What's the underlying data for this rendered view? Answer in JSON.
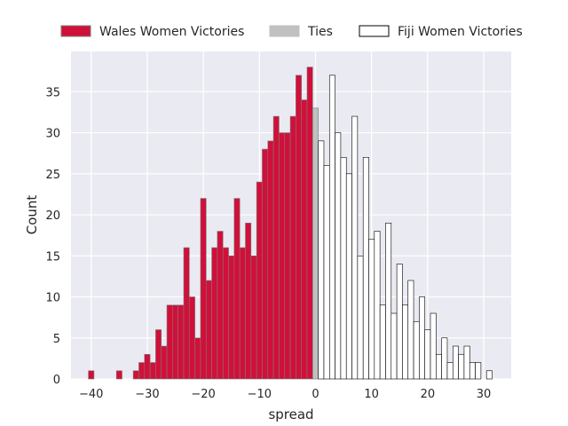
{
  "chart_data": {
    "type": "histogram",
    "xlabel": "spread",
    "ylabel": "Count",
    "xlim": [
      -43.6,
      34.9
    ],
    "ylim": [
      0,
      39.9
    ],
    "xticks": [
      -40,
      -30,
      -20,
      -10,
      0,
      10,
      20,
      30
    ],
    "yticks": [
      0,
      5,
      10,
      15,
      20,
      25,
      30,
      35
    ],
    "grid": true,
    "legend": {
      "placement": "top, above plot",
      "columns": 3
    },
    "bin_width": 1,
    "series": [
      {
        "name": "Wales Women Victories",
        "color": "#d0103a",
        "edgecolor": "#7a7a7a",
        "x": [
          -40,
          -39,
          -38,
          -37,
          -36,
          -35,
          -34,
          -33,
          -32,
          -31,
          -30,
          -29,
          -28,
          -27,
          -26,
          -25,
          -24,
          -23,
          -22,
          -21,
          -20,
          -19,
          -18,
          -17,
          -16,
          -15,
          -14,
          -13,
          -12,
          -11,
          -10,
          -9,
          -8,
          -7,
          -6,
          -5,
          -4,
          -3,
          -2,
          -1
        ],
        "values": [
          1,
          0,
          0,
          0,
          0,
          1,
          0,
          0,
          1,
          2,
          3,
          2,
          6,
          4,
          9,
          9,
          9,
          16,
          10,
          5,
          22,
          12,
          16,
          18,
          16,
          15,
          22,
          16,
          19,
          15,
          24,
          28,
          29,
          32,
          30,
          30,
          32,
          37,
          34,
          38
        ]
      },
      {
        "name": "Ties",
        "color": "#c0c0c0",
        "edgecolor": "#7a7a7a",
        "x": [
          0
        ],
        "values": [
          33
        ]
      },
      {
        "name": "Fiji Women Victories",
        "color": "#ffffff",
        "edgecolor": "#000000",
        "x": [
          1,
          2,
          3,
          4,
          5,
          6,
          7,
          8,
          9,
          10,
          11,
          12,
          13,
          14,
          15,
          16,
          17,
          18,
          19,
          20,
          21,
          22,
          23,
          24,
          25,
          26,
          27,
          28,
          29,
          30,
          31
        ],
        "values": [
          29,
          26,
          37,
          30,
          27,
          25,
          32,
          15,
          27,
          17,
          18,
          9,
          19,
          8,
          14,
          9,
          12,
          7,
          10,
          6,
          8,
          3,
          5,
          2,
          4,
          3,
          4,
          2,
          2,
          0,
          1
        ]
      }
    ]
  }
}
